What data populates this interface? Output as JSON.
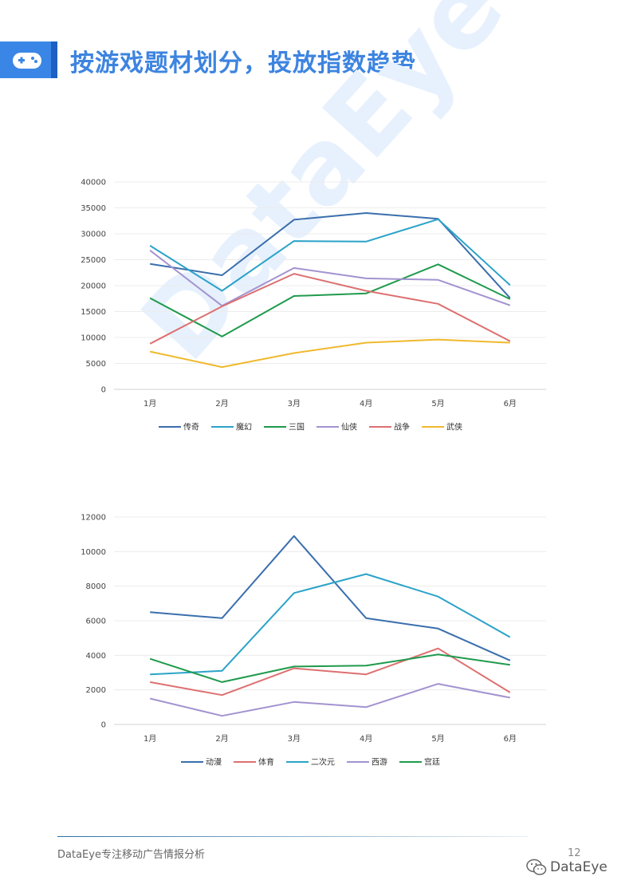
{
  "header": {
    "title": "按游戏题材划分，投放指数趋势",
    "icon": "gamepad-icon",
    "accent": "#3a86e6"
  },
  "watermark": "DataEye",
  "chart_data": [
    {
      "type": "line",
      "categories": [
        "1月",
        "2月",
        "3月",
        "4月",
        "5月",
        "6月"
      ],
      "ylim": [
        0,
        40000
      ],
      "yticks": [
        0,
        5000,
        10000,
        15000,
        20000,
        25000,
        30000,
        35000,
        40000
      ],
      "grid": true,
      "legend": "bottom",
      "series": [
        {
          "name": "传奇",
          "color": "#3a6fad",
          "values": [
            24200,
            22000,
            32700,
            34000,
            32900,
            17600
          ]
        },
        {
          "name": "魔幻",
          "color": "#2ba3c8",
          "values": [
            27700,
            19000,
            28600,
            28500,
            32800,
            20100
          ]
        },
        {
          "name": "三国",
          "color": "#1f9a4c",
          "values": [
            17600,
            10200,
            18000,
            18500,
            24100,
            17400
          ]
        },
        {
          "name": "仙侠",
          "color": "#a393d0",
          "values": [
            26800,
            16100,
            23400,
            21400,
            21100,
            16200
          ]
        },
        {
          "name": "战争",
          "color": "#dd7070",
          "values": [
            8800,
            16000,
            22300,
            19000,
            16500,
            9300
          ]
        },
        {
          "name": "武侠",
          "color": "#f0b92e",
          "values": [
            7300,
            4300,
            7000,
            9000,
            9600,
            9000
          ]
        }
      ]
    },
    {
      "type": "line",
      "categories": [
        "1月",
        "2月",
        "3月",
        "4月",
        "5月",
        "6月"
      ],
      "ylim": [
        0,
        12000
      ],
      "yticks": [
        0,
        2000,
        4000,
        6000,
        8000,
        10000,
        12000
      ],
      "grid": true,
      "legend": "bottom",
      "series": [
        {
          "name": "动漫",
          "color": "#3a6fad",
          "values": [
            6500,
            6150,
            10900,
            6150,
            5550,
            3700
          ]
        },
        {
          "name": "体育",
          "color": "#dd7070",
          "values": [
            2450,
            1700,
            3250,
            2900,
            4400,
            1850
          ]
        },
        {
          "name": "二次元",
          "color": "#2ba3c8",
          "values": [
            2900,
            3100,
            7600,
            8700,
            7400,
            5050
          ]
        },
        {
          "name": "西游",
          "color": "#a393d0",
          "values": [
            1500,
            500,
            1300,
            1000,
            2350,
            1550
          ]
        },
        {
          "name": "宫廷",
          "color": "#1f9a4c",
          "values": [
            3800,
            2450,
            3350,
            3400,
            4050,
            3450
          ]
        }
      ]
    }
  ],
  "footer": {
    "text": "DataEye专注移动广告情报分析",
    "page_number": "12",
    "brand": "DataEye",
    "brand_icon": "wechat-icon"
  }
}
